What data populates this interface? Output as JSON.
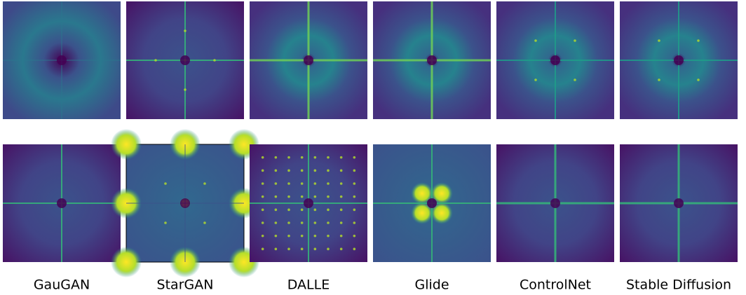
{
  "labels": [
    "GauGAN",
    "StarGAN",
    "DALLE",
    "Glide",
    "ControlNet",
    "Stable Diffusion"
  ]
}
